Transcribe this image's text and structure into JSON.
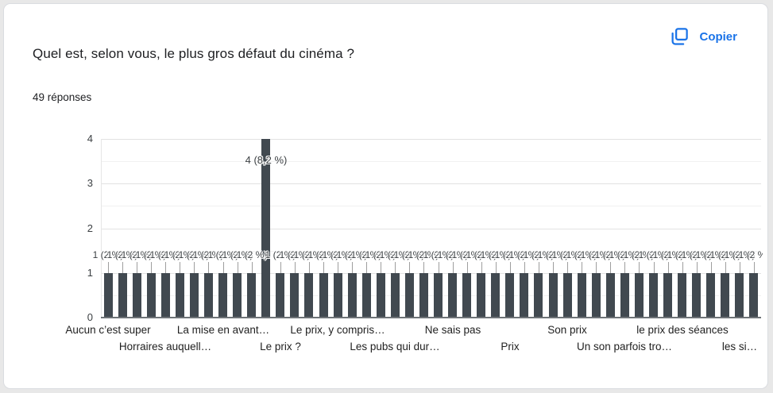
{
  "header": {
    "title": "Quel est, selon vous, le plus gros défaut du cinéma ?",
    "responses_count": "49 réponses",
    "copy_button": {
      "label": "Copier",
      "color": "#1a73e8",
      "icon": "copy-icon"
    }
  },
  "chart_data": {
    "type": "bar",
    "title": "Quel est, selon vous, le plus gros défaut du cinéma ?",
    "subtitle": "49 réponses",
    "bar_color": "#414950",
    "ylim": [
      0,
      4
    ],
    "yticks": [
      "0",
      "1",
      "2",
      "3",
      "4"
    ],
    "gridlines": "horizontal every 0.5, light gray",
    "bar_count": 46,
    "values": [
      1,
      1,
      1,
      1,
      1,
      1,
      1,
      1,
      1,
      1,
      1,
      4,
      1,
      1,
      1,
      1,
      1,
      1,
      1,
      1,
      1,
      1,
      1,
      1,
      1,
      1,
      1,
      1,
      1,
      1,
      1,
      1,
      1,
      1,
      1,
      1,
      1,
      1,
      1,
      1,
      1,
      1,
      1,
      1,
      1,
      1
    ],
    "default_bar_label": "1 (2 %)",
    "highlight": {
      "bar_index": 11,
      "value": 4,
      "label": "4 (8,2 %)"
    },
    "x_tick_labels": [
      {
        "text": "Aucun c’est super",
        "bar_index": 0,
        "row": 1
      },
      {
        "text": "Horraires auquell…",
        "bar_index": 4,
        "row": 2
      },
      {
        "text": "La mise en avant…",
        "bar_index": 8,
        "row": 1
      },
      {
        "text": "Le prix ?",
        "bar_index": 12,
        "row": 2
      },
      {
        "text": "Le prix, y compris…",
        "bar_index": 16,
        "row": 1
      },
      {
        "text": "Les pubs qui dur…",
        "bar_index": 20,
        "row": 2
      },
      {
        "text": "Ne sais pas",
        "bar_index": 24,
        "row": 1
      },
      {
        "text": "Prix",
        "bar_index": 28,
        "row": 2
      },
      {
        "text": "Son prix",
        "bar_index": 32,
        "row": 1
      },
      {
        "text": "Un son parfois tro…",
        "bar_index": 36,
        "row": 2
      },
      {
        "text": "le prix des séances",
        "bar_index": 40,
        "row": 1
      },
      {
        "text": "les si…",
        "bar_index": 44,
        "row": 2
      }
    ]
  }
}
